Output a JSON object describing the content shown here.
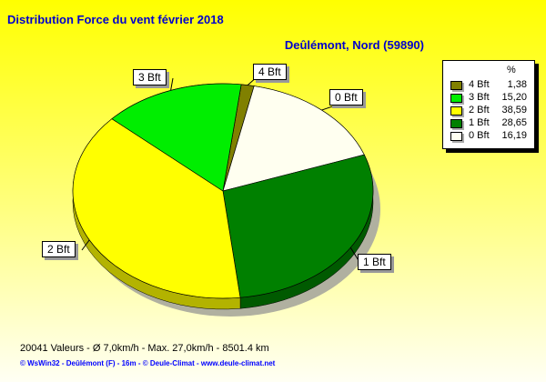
{
  "chart_data": {
    "type": "pie",
    "title": "Distribution Force du vent  février 2018",
    "subtitle": "Deûlémont, Nord (59890)",
    "unit": "%",
    "legend_placement": "right",
    "slices": [
      {
        "name": "4 Bft",
        "value": 1.38,
        "value_label": "1,38",
        "color": "#808000"
      },
      {
        "name": "0 Bft",
        "value": 16.19,
        "value_label": "16,19",
        "color": "#fffff0"
      },
      {
        "name": "1 Bft",
        "value": 28.65,
        "value_label": "28,65",
        "color": "#008000"
      },
      {
        "name": "2 Bft",
        "value": 38.59,
        "value_label": "38,59",
        "color": "#ffff00"
      },
      {
        "name": "3 Bft",
        "value": 15.2,
        "value_label": "15,20",
        "color": "#00ee00"
      }
    ],
    "legend_order": [
      "4 Bft",
      "3 Bft",
      "2 Bft",
      "1 Bft",
      "0 Bft"
    ]
  },
  "footer": {
    "stats": "20041 Valeurs   -   Ø 7,0km/h  -  Max. 27,0km/h   -   8501.4 km",
    "credits": "© WsWin32  -  Deûlémont (F) - 16m  -  © Deule-Climat - www.deule-climat.net"
  }
}
